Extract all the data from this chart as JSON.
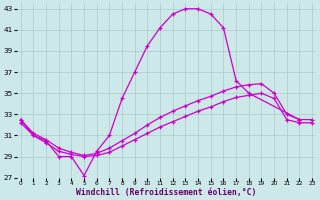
{
  "xlabel": "Windchill (Refroidissement éolien,°C)",
  "bg_color": "#cce8e8",
  "grid_color": "#aacccc",
  "line_color": "#cc00cc",
  "curve_big": {
    "x": [
      0,
      1,
      2,
      3,
      4,
      5,
      6,
      7,
      8,
      9,
      10,
      11,
      12,
      13,
      14,
      15,
      16,
      17,
      18,
      22
    ],
    "y": [
      32.5,
      31.0,
      30.5,
      29.0,
      29.0,
      27.2,
      29.5,
      31.0,
      34.5,
      37.0,
      39.5,
      41.2,
      42.5,
      43.0,
      43.0,
      42.5,
      41.2,
      36.2,
      35.0,
      32.5
    ]
  },
  "curve_mid": {
    "x": [
      0,
      1,
      2,
      3,
      4,
      5,
      6,
      7,
      8,
      9,
      10,
      11,
      12,
      13,
      14,
      15,
      16,
      17,
      18,
      19,
      20,
      21,
      22,
      23
    ],
    "y": [
      32.5,
      31.2,
      30.6,
      29.8,
      29.4,
      29.1,
      29.3,
      29.8,
      30.5,
      31.2,
      32.0,
      32.7,
      33.3,
      33.8,
      34.3,
      34.7,
      35.2,
      35.6,
      35.8,
      35.9,
      35.0,
      33.0,
      32.5,
      32.5
    ]
  },
  "curve_low": {
    "x": [
      0,
      1,
      2,
      3,
      4,
      5,
      6,
      7,
      8,
      9,
      10,
      11,
      12,
      13,
      14,
      15,
      16,
      17,
      18,
      19,
      20,
      21,
      22,
      23
    ],
    "y": [
      32.2,
      31.0,
      30.3,
      29.5,
      29.2,
      29.0,
      29.1,
      29.4,
      30.0,
      30.6,
      31.2,
      31.8,
      32.3,
      32.8,
      33.3,
      33.7,
      34.2,
      34.6,
      34.8,
      35.0,
      34.5,
      32.5,
      32.2,
      32.2
    ]
  },
  "ylim": [
    27,
    43.5
  ],
  "yticks": [
    27,
    29,
    31,
    33,
    35,
    37,
    39,
    41,
    43
  ],
  "xlim": [
    -0.3,
    23.3
  ],
  "xticks": [
    0,
    1,
    2,
    3,
    4,
    5,
    6,
    7,
    8,
    9,
    10,
    11,
    12,
    13,
    14,
    15,
    16,
    17,
    18,
    19,
    20,
    21,
    22,
    23
  ]
}
